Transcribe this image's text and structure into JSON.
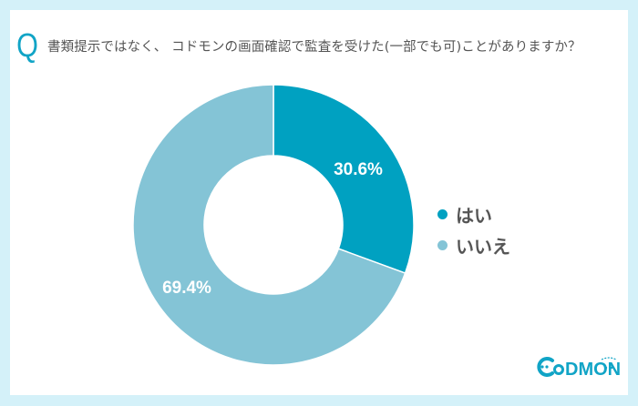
{
  "question": {
    "mark": "Q",
    "text": "書類提示ではなく、 コドモンの画面確認で監査を受けた(一部でも可)ことがありますか？"
  },
  "legend": [
    {
      "label": "はい",
      "color": "#00a1c1"
    },
    {
      "label": "いいえ",
      "color": "#84c4d6"
    }
  ],
  "labels": {
    "yes_pct": "30.6%",
    "no_pct": "69.4%"
  },
  "logo": {
    "text": "CoDMON"
  },
  "colors": {
    "background": "#d4f1f9",
    "card": "#ffffff",
    "accent": "#11a4c6",
    "yes": "#00a1c1",
    "no": "#84c4d6",
    "text": "#555555"
  },
  "chart_data": {
    "type": "pie",
    "subtype": "donut",
    "title": "書類提示ではなく、 コドモンの画面確認で監査を受けた(一部でも可)ことがありますか？",
    "categories": [
      "はい",
      "いいえ"
    ],
    "values": [
      30.6,
      69.4
    ],
    "unit": "%",
    "colors": [
      "#00a1c1",
      "#84c4d6"
    ],
    "start_angle": "12 o'clock, clockwise",
    "legend_position": "right",
    "data_labels": [
      "30.6%",
      "69.4%"
    ]
  }
}
